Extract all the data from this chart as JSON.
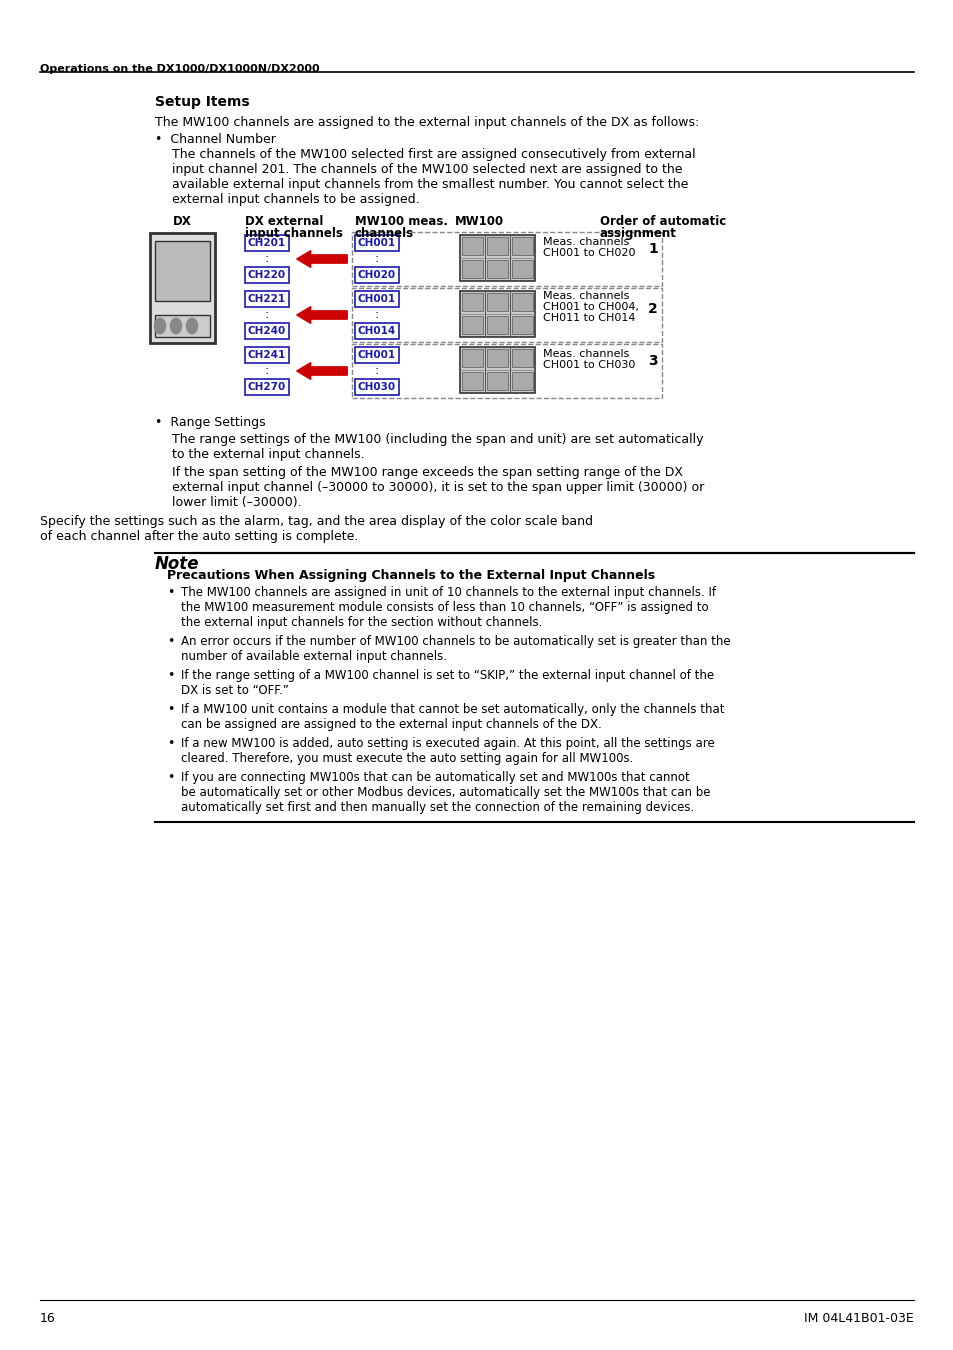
{
  "page_title": "Operations on the DX1000/DX1000N/DX2000",
  "section_title": "Setup Items",
  "page_number": "16",
  "page_ref": "IM 04L41B01-03E",
  "bg_color": "#ffffff",
  "text_color": "#000000",
  "channel_box_color": "#1a1aaa",
  "arrow_color": "#cc0000",
  "dashed_box_color": "#666666",
  "note_title": "Note"
}
